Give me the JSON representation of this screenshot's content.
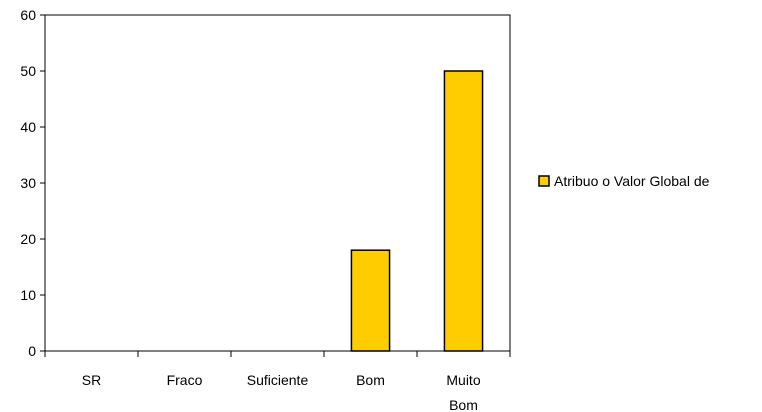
{
  "chart_data": {
    "type": "bar",
    "categories": [
      "SR",
      "Fraco",
      "Suficiente",
      "Bom",
      "Muito Bom"
    ],
    "category_lines": [
      [
        "SR"
      ],
      [
        "Fraco"
      ],
      [
        "Suficiente"
      ],
      [
        "Bom"
      ],
      [
        "Muito",
        "Bom"
      ]
    ],
    "series": [
      {
        "name": "Atribuo o Valor Global de",
        "values": [
          0,
          0,
          0,
          18,
          50
        ]
      }
    ],
    "ylim": [
      0,
      60
    ],
    "yticks": [
      0,
      10,
      20,
      30,
      40,
      50,
      60
    ],
    "title": "",
    "xlabel": "",
    "ylabel": "",
    "grid": false,
    "legend_position": "right",
    "colors": {
      "bar_fill": "#FFCC00",
      "bar_stroke": "#000000",
      "axis": "#000000"
    }
  }
}
